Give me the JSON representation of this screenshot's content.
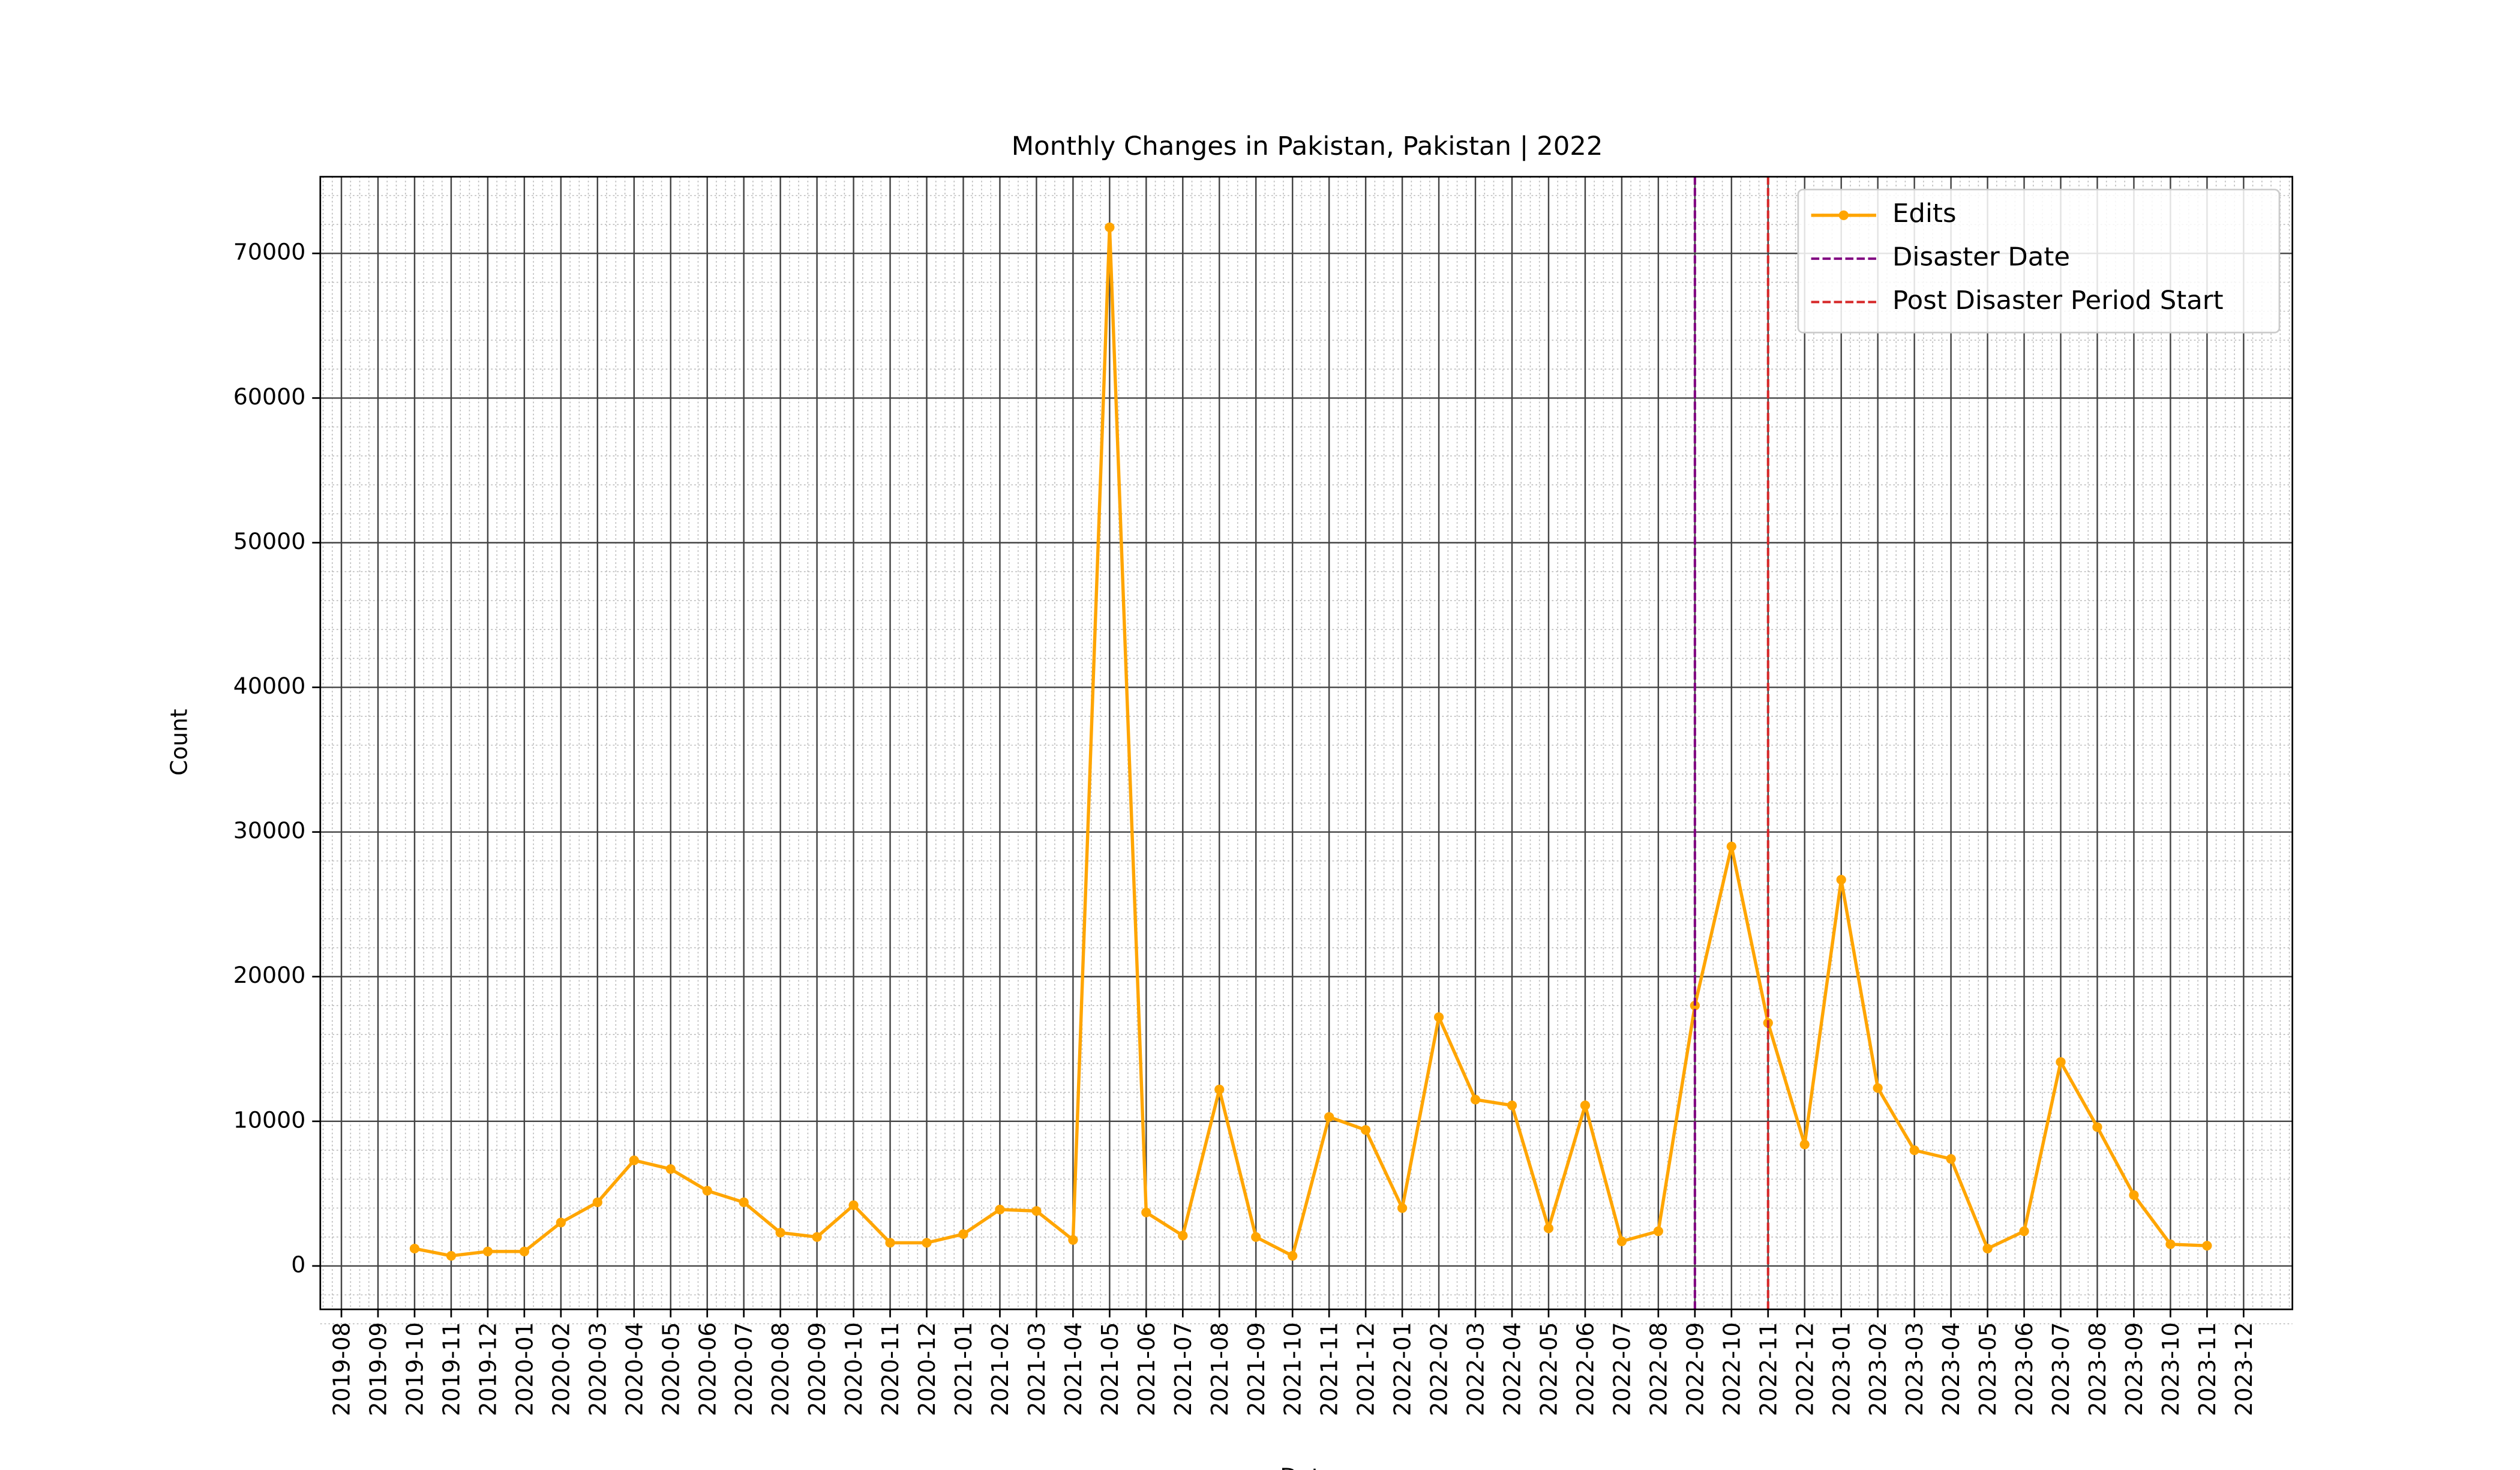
{
  "chart_data": {
    "type": "line",
    "title": "Monthly Changes in Pakistan, Pakistan | 2022",
    "xlabel": "Date",
    "ylabel": "Count",
    "x": [
      "2019-10",
      "2019-11",
      "2019-12",
      "2020-01",
      "2020-02",
      "2020-03",
      "2020-04",
      "2020-05",
      "2020-06",
      "2020-07",
      "2020-08",
      "2020-09",
      "2020-10",
      "2020-11",
      "2020-12",
      "2021-01",
      "2021-02",
      "2021-03",
      "2021-04",
      "2021-05",
      "2021-06",
      "2021-07",
      "2021-08",
      "2021-09",
      "2021-10",
      "2021-11",
      "2021-12",
      "2022-01",
      "2022-02",
      "2022-03",
      "2022-04",
      "2022-05",
      "2022-06",
      "2022-07",
      "2022-08",
      "2022-09",
      "2022-10",
      "2022-11",
      "2022-12",
      "2023-01",
      "2023-02",
      "2023-03",
      "2023-04",
      "2023-05",
      "2023-06",
      "2023-07",
      "2023-08",
      "2023-09",
      "2023-10",
      "2023-11"
    ],
    "series": [
      {
        "name": "Edits",
        "color": "#ffa500",
        "values": [
          1200,
          700,
          1000,
          1000,
          3000,
          4400,
          7300,
          6700,
          5200,
          4400,
          2300,
          2000,
          4200,
          1600,
          1600,
          2200,
          3900,
          3800,
          1800,
          71800,
          3700,
          2100,
          12200,
          2000,
          700,
          10300,
          9400,
          4000,
          17200,
          11500,
          11100,
          2600,
          11100,
          1700,
          2400,
          18000,
          29000,
          16800,
          8400,
          26700,
          12300,
          8000,
          7400,
          1200,
          2400,
          14100,
          9600,
          4900,
          1500,
          1400
        ]
      }
    ],
    "vlines": [
      {
        "name": "Disaster Date",
        "x": "2022-09",
        "color": "#800080"
      },
      {
        "name": "Post Disaster Period Start",
        "x": "2022-11",
        "color": "#d62728"
      }
    ],
    "ylim": [
      -3000,
      75300
    ],
    "yticks": [
      0,
      10000,
      20000,
      30000,
      40000,
      50000,
      60000,
      70000
    ],
    "xticks": [
      "2019-08",
      "2019-09",
      "2019-10",
      "2019-11",
      "2019-12",
      "2020-01",
      "2020-02",
      "2020-03",
      "2020-04",
      "2020-05",
      "2020-06",
      "2020-07",
      "2020-08",
      "2020-09",
      "2020-10",
      "2020-11",
      "2020-12",
      "2021-01",
      "2021-02",
      "2021-03",
      "2021-04",
      "2021-05",
      "2021-06",
      "2021-07",
      "2021-08",
      "2021-09",
      "2021-10",
      "2021-11",
      "2021-12",
      "2022-01",
      "2022-02",
      "2022-03",
      "2022-04",
      "2022-05",
      "2022-06",
      "2022-07",
      "2022-08",
      "2022-09",
      "2022-10",
      "2022-11",
      "2022-12",
      "2023-01",
      "2023-02",
      "2023-03",
      "2023-04",
      "2023-05",
      "2023-06",
      "2023-07",
      "2023-08",
      "2023-09",
      "2023-10",
      "2023-11",
      "2023-12"
    ],
    "grid": true,
    "legend": "upper right"
  }
}
